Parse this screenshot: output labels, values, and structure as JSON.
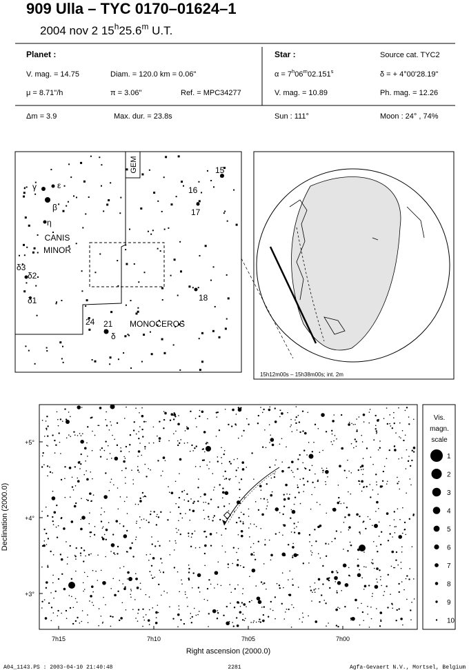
{
  "header": {
    "title": "909 Ulla  –  TYC 0170–01624–1",
    "subtitle": [
      "2004 nov  2  15",
      "h",
      "25.6",
      "m",
      " U.T."
    ]
  },
  "planet": {
    "heading": "Planet :",
    "vmag": "V. mag. = 14.75",
    "diam": "Diam. = 120.0 km = 0.06\"",
    "mu": "μ =  8.71\"/h",
    "pi": "π =  3.06\"",
    "ref": "Ref. = MPC34277"
  },
  "star": {
    "heading": "Star :",
    "source": "Source cat.  TYC2",
    "alpha": [
      "α =  7",
      "h",
      "06",
      "m",
      "02.151",
      "s"
    ],
    "delta": "δ = + 4°00'28.19\"",
    "vmag": "V. mag. = 10.89",
    "phmag": "Ph. mag. = 12.26"
  },
  "summary": {
    "dm": "Δm = 3.9",
    "maxdur": "Max. dur. = 23.8s",
    "sun": "Sun : 111°",
    "moon": "Moon :  24° , 74%"
  },
  "finder": {
    "gem": "GEM",
    "canis": [
      "CANIS",
      "MINOR"
    ],
    "monoceros": "MONOCEROS",
    "labels": [
      "γ",
      "ε",
      "β",
      "η",
      "δ3",
      "δ2",
      "δ1",
      "15",
      "16",
      "17",
      "18",
      "24",
      "21",
      "δ"
    ]
  },
  "globe": {
    "caption": "15h12m00s – 15h38m00s; int.  2m"
  },
  "field": {
    "ylabel": "Declination (2000.0)",
    "xlabel": "Right ascension (2000.0)",
    "yticks": [
      "+5°",
      "+4°",
      "+3°"
    ],
    "xticks": [
      "7h15",
      "7h10",
      "7h05",
      "7h00"
    ]
  },
  "scale": {
    "title": [
      "Vis.",
      "magn.",
      "scale"
    ],
    "items": [
      "1",
      "2",
      "3",
      "4",
      "5",
      "6",
      "7",
      "8",
      "9",
      "10"
    ]
  },
  "footer": {
    "file": "A04_1143.PS : 2003-04-10 21:40:48",
    "number": "2281",
    "credit": "Agfa-Gevaert N.V., Mortsel, Belgium"
  }
}
